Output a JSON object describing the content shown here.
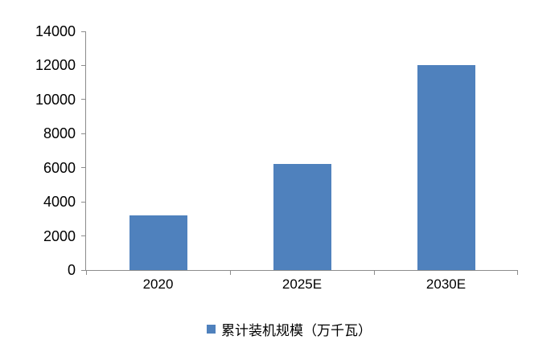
{
  "chart_data": {
    "type": "bar",
    "title": "",
    "categories": [
      "2020",
      "2025E",
      "2030E"
    ],
    "series": [
      {
        "name": "累计装机规模（万千瓦）",
        "values": [
          3200,
          6200,
          12000
        ]
      }
    ],
    "xlabel": "",
    "ylabel": "",
    "ylim": [
      0,
      14000
    ],
    "ytick_step": 2000,
    "yticks": [
      0,
      2000,
      4000,
      6000,
      8000,
      10000,
      12000,
      14000
    ],
    "grid": false,
    "legend_position": "bottom",
    "bar_color": "#4F81BD",
    "axis_color": "#8C8C8C",
    "text_color": "#000000",
    "background_color": "#FFFFFF"
  },
  "legend": {
    "swatch_icon": "square-swatch",
    "label": "累计装机规模（万千瓦）"
  }
}
